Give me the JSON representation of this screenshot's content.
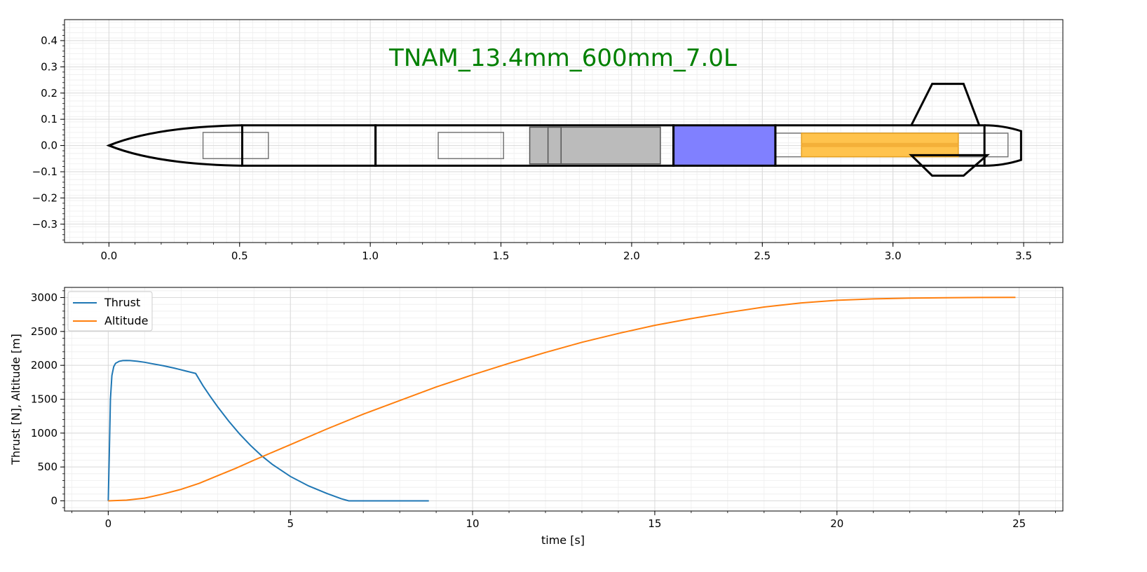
{
  "chart_data": [
    {
      "type": "diagram",
      "title": "TNAM_13.4mm_600mm_7.0L",
      "title_color": "#008000",
      "grid": true,
      "xlim": [
        -0.17,
        3.65
      ],
      "ylim": [
        -0.37,
        0.48
      ],
      "xticks": [
        "0.0",
        "0.5",
        "1.0",
        "1.5",
        "2.0",
        "2.5",
        "3.0",
        "3.5"
      ],
      "yticks": [
        "−0.3",
        "−0.2",
        "−0.1",
        "0.0",
        "0.1",
        "0.2",
        "0.3",
        "0.4"
      ],
      "outline_color": "#000000",
      "nose_cone": {
        "x": [
          0.0,
          0.51
        ],
        "radius": 0.077
      },
      "body_sections": [
        {
          "x": [
            0.51,
            1.02
          ]
        },
        {
          "x": [
            1.02,
            2.16
          ]
        },
        {
          "x": [
            2.16,
            2.55
          ]
        },
        {
          "x": [
            2.55,
            3.35
          ]
        }
      ],
      "tail_cone": {
        "x": [
          3.35,
          3.49
        ],
        "r_start": 0.077,
        "r_end": 0.055
      },
      "fin": {
        "root": [
          3.07,
          3.33
        ],
        "tip": [
          3.15,
          3.27
        ],
        "span_to": 0.235
      },
      "components": [
        {
          "name": "payload-box",
          "x": [
            0.36,
            0.61
          ],
          "y": [
            -0.05,
            0.05
          ],
          "fill": "none",
          "stroke": "#777777"
        },
        {
          "name": "avionics-box",
          "x": [
            1.26,
            1.51
          ],
          "y": [
            -0.05,
            0.05
          ],
          "fill": "none",
          "stroke": "#777777"
        },
        {
          "name": "recovery-gray",
          "x": [
            1.61,
            2.11
          ],
          "y": [
            -0.07,
            0.07
          ],
          "fill": "#bbbbbb",
          "stroke": "#555555"
        },
        {
          "name": "recovery-inner",
          "x": [
            1.68,
            1.73
          ],
          "y": [
            -0.07,
            0.07
          ],
          "fill": "none",
          "stroke": "#555555"
        },
        {
          "name": "tank-blue",
          "x": [
            2.16,
            2.55
          ],
          "y": [
            -0.077,
            0.077
          ],
          "fill": "#8080ff",
          "stroke": "#000000"
        },
        {
          "name": "engine-bay",
          "x": [
            2.55,
            3.44
          ],
          "y": [
            -0.043,
            0.047
          ],
          "fill": "none",
          "stroke": "#777777"
        },
        {
          "name": "grain-orange",
          "x": [
            2.65,
            3.25
          ],
          "y": [
            -0.043,
            0.047
          ],
          "fill": "#ffc34d",
          "stroke": "#e6a020"
        }
      ]
    },
    {
      "type": "line",
      "xlabel": "time [s]",
      "ylabel": "Thrust [N], Altitude [m]",
      "xlim": [
        -1.2,
        26.2
      ],
      "ylim": [
        -150,
        3150
      ],
      "xticks": [
        "0",
        "5",
        "10",
        "15",
        "20",
        "25"
      ],
      "yticks": [
        "0",
        "500",
        "1000",
        "1500",
        "2000",
        "2500",
        "3000"
      ],
      "grid": true,
      "legend": "upper-left",
      "series": [
        {
          "name": "Thrust",
          "color": "#1f77b4",
          "x": [
            0,
            0.03,
            0.06,
            0.1,
            0.15,
            0.2,
            0.3,
            0.4,
            0.5,
            0.6,
            0.8,
            1.0,
            1.2,
            1.5,
            1.8,
            2.1,
            2.4,
            2.6,
            2.8,
            3.0,
            3.3,
            3.6,
            3.9,
            4.2,
            4.5,
            5.0,
            5.5,
            6.0,
            6.4,
            6.6,
            7.0,
            8.0,
            8.8
          ],
          "y": [
            0,
            700,
            1500,
            1850,
            1980,
            2030,
            2060,
            2070,
            2072,
            2070,
            2060,
            2045,
            2025,
            1995,
            1960,
            1920,
            1880,
            1700,
            1540,
            1390,
            1180,
            990,
            820,
            670,
            540,
            360,
            220,
            110,
            30,
            0,
            0,
            0,
            0
          ]
        },
        {
          "name": "Altitude",
          "color": "#ff7f0e",
          "x": [
            0,
            0.5,
            1,
            1.5,
            2,
            2.5,
            3,
            3.5,
            4,
            5,
            6,
            7,
            8,
            9,
            10,
            11,
            12,
            13,
            14,
            15,
            16,
            17,
            18,
            19,
            20,
            21,
            22,
            23,
            24,
            24.9
          ],
          "y": [
            0,
            10,
            40,
            100,
            170,
            260,
            370,
            480,
            600,
            830,
            1060,
            1280,
            1480,
            1680,
            1860,
            2030,
            2190,
            2340,
            2470,
            2590,
            2690,
            2780,
            2860,
            2920,
            2960,
            2980,
            2992,
            2998,
            3001,
            3002
          ]
        }
      ]
    }
  ]
}
